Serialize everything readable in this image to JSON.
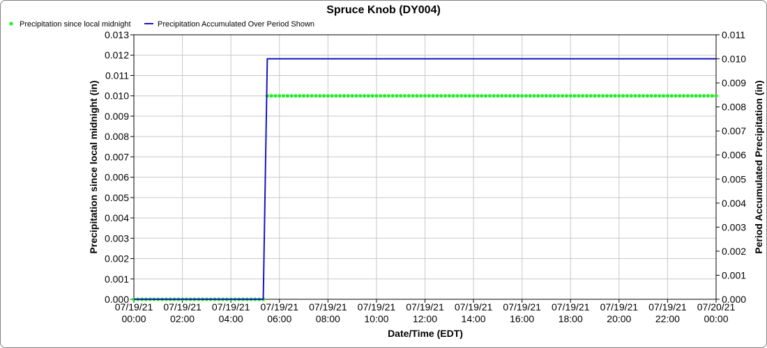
{
  "chart_data": {
    "type": "line",
    "title": "Spruce Knob (DY004)",
    "xlabel": "Date/Time (EDT)",
    "ylabel_left": "Precipitation since local midnight (in)",
    "ylabel_right": "Period Accumulated Precipitation (in)",
    "x_ticks": [
      [
        "07/19/21",
        "00:00"
      ],
      [
        "07/19/21",
        "02:00"
      ],
      [
        "07/19/21",
        "04:00"
      ],
      [
        "07/19/21",
        "06:00"
      ],
      [
        "07/19/21",
        "08:00"
      ],
      [
        "07/19/21",
        "10:00"
      ],
      [
        "07/19/21",
        "12:00"
      ],
      [
        "07/19/21",
        "14:00"
      ],
      [
        "07/19/21",
        "16:00"
      ],
      [
        "07/19/21",
        "18:00"
      ],
      [
        "07/19/21",
        "20:00"
      ],
      [
        "07/19/21",
        "22:00"
      ],
      [
        "07/20/21",
        "00:00"
      ]
    ],
    "xlim_hours": [
      0,
      24
    ],
    "ylim_left": [
      0,
      0.013
    ],
    "yticks_left": [
      "0.000",
      "0.001",
      "0.002",
      "0.003",
      "0.004",
      "0.005",
      "0.006",
      "0.007",
      "0.008",
      "0.009",
      "0.010",
      "0.011",
      "0.012",
      "0.013"
    ],
    "ylim_right": [
      0,
      0.011
    ],
    "yticks_right": [
      "0.000",
      "0.001",
      "0.002",
      "0.003",
      "0.004",
      "0.005",
      "0.006",
      "0.007",
      "0.008",
      "0.009",
      "0.010",
      "0.011"
    ],
    "grid": true,
    "legend_position": "top-left",
    "series": [
      {
        "name": "Precipitation since local midnight",
        "axis": "left",
        "style": "points",
        "color": "#22ee22",
        "interval_minutes": 10,
        "segments": [
          {
            "from": "00:00",
            "to": "05:20",
            "value": 0.0
          },
          {
            "from": "05:30",
            "to": "24:00",
            "value": 0.01
          }
        ]
      },
      {
        "name": "Precipitation Accumulated Over Period Shown",
        "axis": "right",
        "style": "line",
        "color": "#1515c0",
        "points": [
          {
            "time": "00:00",
            "value": 0.0
          },
          {
            "time": "05:20",
            "value": 0.0
          },
          {
            "time": "05:30",
            "value": 0.01
          },
          {
            "time": "24:00",
            "value": 0.01
          }
        ]
      }
    ]
  }
}
